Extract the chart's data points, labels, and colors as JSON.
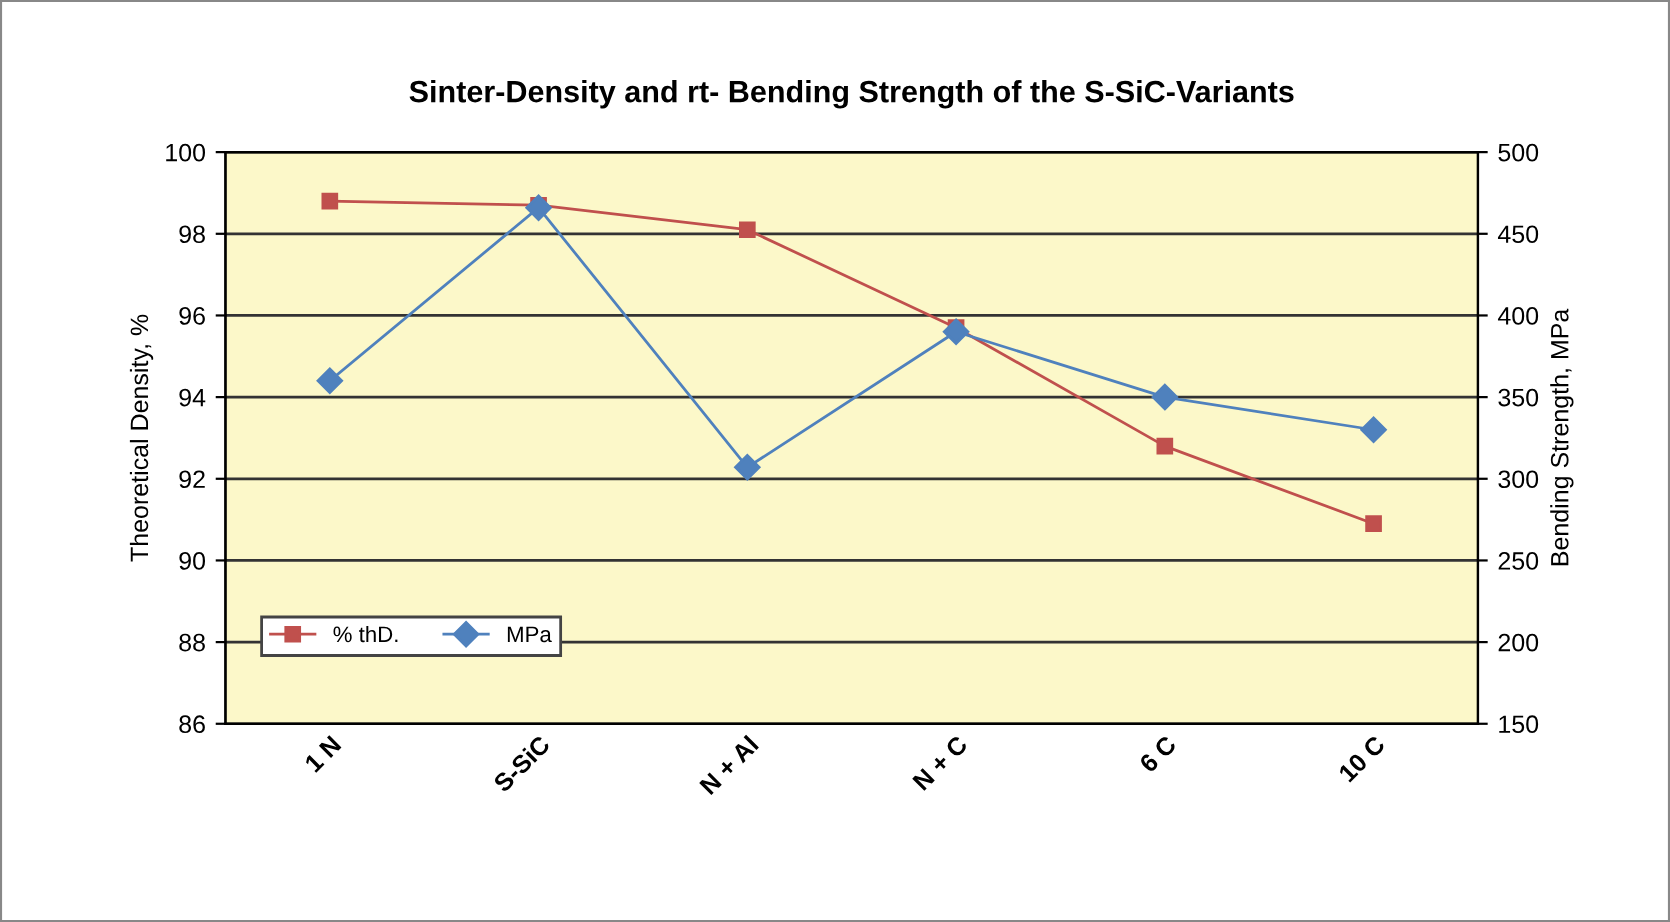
{
  "chart_data": {
    "type": "line",
    "title": "Sinter-Density and rt- Bending Strength of the S-SiC-Variants",
    "ylabel": "Theoretical Density, %",
    "y2label": "Bending Strength, MPa",
    "categories": [
      "1 N",
      "S-SiC",
      "N + Al",
      "N + C",
      "6 C",
      "10 C"
    ],
    "series": [
      {
        "name": "% thD.",
        "color": "#c0504d",
        "marker": "square",
        "values": [
          98.8,
          98.7,
          98.1,
          95.7,
          92.8,
          90.9
        ]
      },
      {
        "name": "MPa",
        "color": "#4f81bd",
        "marker": "diamond",
        "axis": "y2",
        "values": [
          360,
          466,
          307,
          390,
          350,
          330
        ]
      }
    ],
    "ylim": [
      86,
      100
    ],
    "yticks": [
      86,
      88,
      90,
      92,
      94,
      96,
      98,
      100
    ],
    "y2lim": [
      150,
      500
    ],
    "y2ticks": [
      150,
      200,
      250,
      300,
      350,
      400,
      450,
      500
    ],
    "grid": "y",
    "legend": "bottom left"
  }
}
